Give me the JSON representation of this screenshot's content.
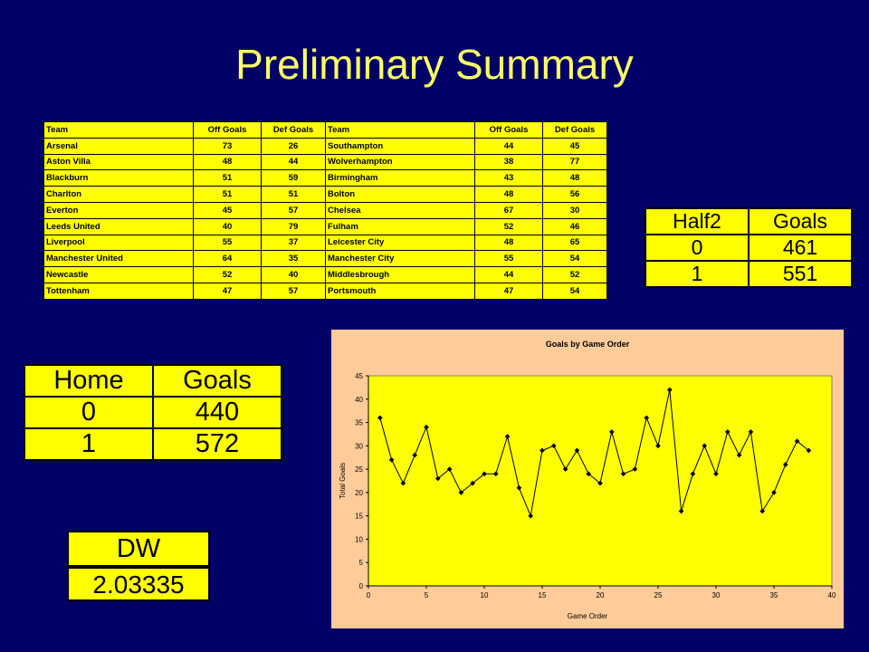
{
  "title": "Preliminary Summary",
  "team_table": {
    "headers": [
      "Team",
      "Off Goals",
      "Def Goals",
      "Team",
      "Off Goals",
      "Def Goals"
    ],
    "rows": [
      [
        "Arsenal",
        "73",
        "26",
        "Southampton",
        "44",
        "45"
      ],
      [
        "Aston Villa",
        "48",
        "44",
        "Wolverhampton",
        "38",
        "77"
      ],
      [
        "Blackburn",
        "51",
        "59",
        "Birmingham",
        "43",
        "48"
      ],
      [
        "Charlton",
        "51",
        "51",
        "Bolton",
        "48",
        "56"
      ],
      [
        "Everton",
        "45",
        "57",
        "Chelsea",
        "67",
        "30"
      ],
      [
        "Leeds United",
        "40",
        "79",
        "Fulham",
        "52",
        "46"
      ],
      [
        "Liverpool",
        "55",
        "37",
        "Leicester City",
        "48",
        "65"
      ],
      [
        "Manchester United",
        "64",
        "35",
        "Manchester City",
        "55",
        "54"
      ],
      [
        "Newcastle",
        "52",
        "40",
        "Middlesbrough",
        "44",
        "52"
      ],
      [
        "Tottenham",
        "47",
        "57",
        "Portsmouth",
        "47",
        "54"
      ]
    ]
  },
  "half2_table": {
    "headers": [
      "Half2",
      "Goals"
    ],
    "rows": [
      [
        "0",
        "461"
      ],
      [
        "1",
        "551"
      ]
    ]
  },
  "home_table": {
    "headers": [
      "Home",
      "Goals"
    ],
    "rows": [
      [
        "0",
        "440"
      ],
      [
        "1",
        "572"
      ]
    ]
  },
  "dw": {
    "label": "DW",
    "value": "2.03335"
  },
  "chart_data": {
    "type": "line",
    "title": "Goals by Game Order",
    "xlabel": "Game Order",
    "ylabel": "Total Goals",
    "xlim": [
      0,
      40
    ],
    "ylim": [
      0,
      45
    ],
    "xticks": [
      0,
      5,
      10,
      15,
      20,
      25,
      30,
      35,
      40
    ],
    "yticks": [
      0,
      5,
      10,
      15,
      20,
      25,
      30,
      35,
      40,
      45
    ],
    "grid": false,
    "legend": false,
    "colors": {
      "plot_bg": "#ffff00",
      "line": "#000000"
    },
    "x": [
      1,
      2,
      3,
      4,
      5,
      6,
      7,
      8,
      9,
      10,
      11,
      12,
      13,
      14,
      15,
      16,
      17,
      18,
      19,
      20,
      21,
      22,
      23,
      24,
      25,
      26,
      27,
      28,
      29,
      30,
      31,
      32,
      33,
      34,
      35,
      36,
      37,
      38
    ],
    "values": [
      36,
      27,
      22,
      28,
      34,
      23,
      25,
      20,
      22,
      24,
      24,
      32,
      21,
      15,
      29,
      30,
      25,
      29,
      24,
      22,
      33,
      24,
      25,
      36,
      30,
      42,
      16,
      24,
      30,
      24,
      33,
      28,
      33,
      16,
      20,
      26,
      31,
      29
    ]
  }
}
